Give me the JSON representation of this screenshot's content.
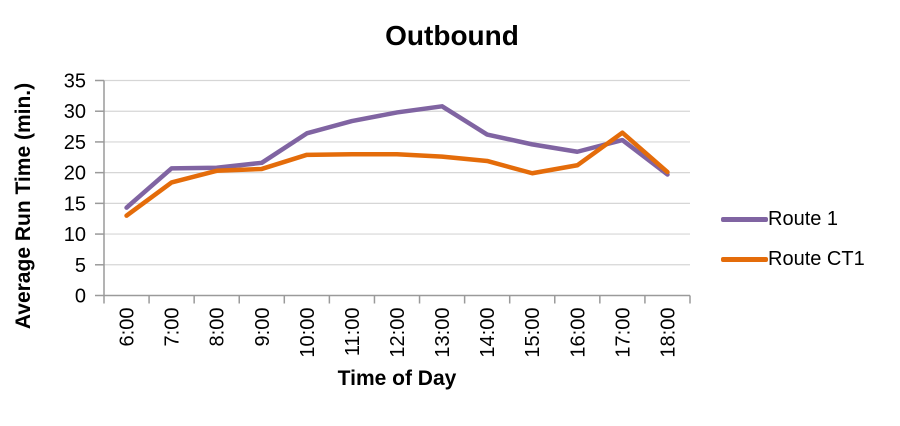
{
  "chart_data": {
    "type": "line",
    "title": "Outbound",
    "xlabel": "Time of Day",
    "ylabel": "Average Run Time (min.)",
    "categories": [
      "6:00",
      "7:00",
      "8:00",
      "9:00",
      "10:00",
      "11:00",
      "12:00",
      "13:00",
      "14:00",
      "15:00",
      "16:00",
      "17:00",
      "18:00"
    ],
    "series": [
      {
        "name": "Route 1",
        "color": "#8064A2",
        "values": [
          14.3,
          20.7,
          20.8,
          21.6,
          26.4,
          28.4,
          29.8,
          30.8,
          26.2,
          24.6,
          23.4,
          25.3,
          19.7
        ]
      },
      {
        "name": "Route CT1",
        "color": "#E46C0A",
        "values": [
          13.0,
          18.4,
          20.3,
          20.6,
          22.9,
          23.0,
          23.0,
          22.6,
          21.9,
          19.9,
          21.2,
          26.5,
          20.1
        ]
      }
    ],
    "ylim": [
      0,
      35
    ],
    "ytick_step": 5,
    "yticks": [
      "0",
      "5",
      "10",
      "15",
      "20",
      "25",
      "30",
      "35"
    ],
    "grid": "horizontal",
    "legend_position": "right",
    "colors": {
      "gridline": "#D6D6D6",
      "axis": "#9A9A9A",
      "text": "#000000",
      "background": "#FFFFFF"
    }
  }
}
